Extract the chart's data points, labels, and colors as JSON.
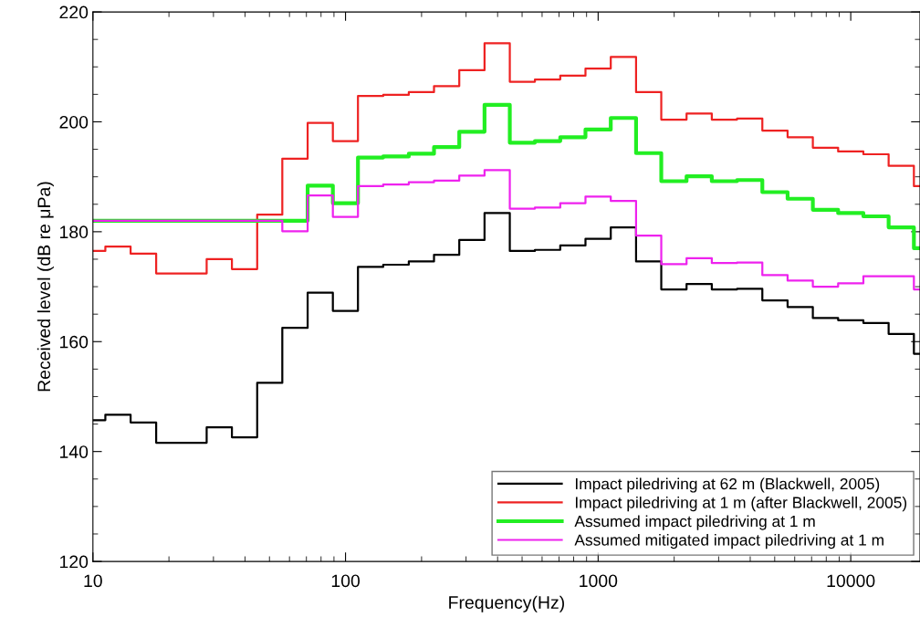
{
  "chart_data": {
    "type": "step",
    "xlabel": "Frequency(Hz)",
    "ylabel": "Received level (dB re μPa)",
    "x": [
      10,
      11.2,
      14.1,
      17.8,
      22.4,
      28.2,
      35.5,
      44.7,
      56.2,
      70.8,
      89.1,
      112,
      141,
      178,
      224,
      282,
      355,
      447,
      562,
      708,
      891,
      1122,
      1413,
      1778,
      2239,
      2818,
      3548,
      4467,
      5623,
      7079,
      8913,
      11220,
      14125,
      17783,
      18800
    ],
    "series": [
      {
        "name": "Impact piledriving at 62 m (Blackwell, 2005)",
        "color": "#000000",
        "values": [
          145.7,
          146.7,
          145.3,
          141.6,
          141.6,
          144.4,
          142.6,
          152.5,
          162.5,
          168.9,
          165.6,
          173.6,
          174.0,
          174.6,
          175.8,
          178.5,
          183.4,
          176.5,
          176.7,
          177.5,
          178.7,
          180.8,
          174.6,
          169.5,
          170.5,
          169.5,
          169.6,
          167.5,
          166.3,
          164.3,
          163.9,
          163.4,
          161.4,
          157.8,
          157.8
        ]
      },
      {
        "name": "Impact piledriving at 1 m (after Blackwell, 2005)",
        "color": "#ee2222",
        "values": [
          176.5,
          177.3,
          176.0,
          172.4,
          172.4,
          175.0,
          173.2,
          183.1,
          193.3,
          199.8,
          196.5,
          204.7,
          204.9,
          205.4,
          206.5,
          209.4,
          214.3,
          207.3,
          207.7,
          208.4,
          209.7,
          211.8,
          205.4,
          200.4,
          201.5,
          200.4,
          200.6,
          198.4,
          197.2,
          195.3,
          194.6,
          194.1,
          192.0,
          188.3,
          188.3
        ]
      },
      {
        "name": "Assumed impact piledriving at 1 m",
        "color": "#22ee22",
        "values": [
          182,
          182,
          182,
          182,
          182,
          182,
          182,
          182,
          182.0,
          188.4,
          185.2,
          193.5,
          193.7,
          194.2,
          195.4,
          198.2,
          203.1,
          196.2,
          196.5,
          197.2,
          198.6,
          200.7,
          194.3,
          189.2,
          190.1,
          189.2,
          189.4,
          187.2,
          186.0,
          184.0,
          183.4,
          182.8,
          180.8,
          177.0,
          177.0
        ]
      },
      {
        "name": "Assumed mitigated impact piledriving at 1 m",
        "color": "#ee22ee",
        "values": [
          182,
          182,
          182,
          182,
          182,
          182,
          182,
          182,
          180.1,
          186.6,
          182.7,
          188.3,
          188.6,
          189.0,
          189.3,
          190.2,
          191.2,
          184.2,
          184.4,
          185.2,
          186.4,
          185.6,
          179.3,
          174.1,
          175.2,
          174.3,
          174.4,
          172.1,
          171.1,
          170.0,
          170.6,
          171.9,
          171.9,
          169.5,
          169.5
        ]
      }
    ],
    "log": "x",
    "xlim": [
      10,
      18800
    ],
    "ylim": [
      120,
      220
    ],
    "xticks": [
      10,
      100,
      1000,
      10000
    ],
    "yticks": [
      120,
      140,
      160,
      180,
      200,
      220
    ],
    "grid": false,
    "legend": "bottom right",
    "line_style": "solid",
    "marker": "none"
  }
}
